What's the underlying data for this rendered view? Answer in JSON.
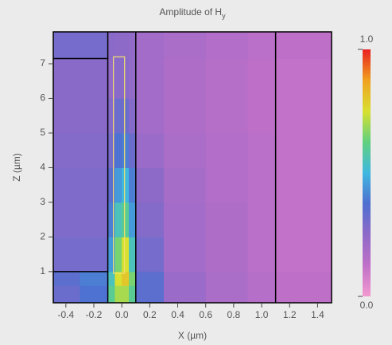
{
  "chart_data": {
    "type": "heatmap",
    "title": "Amplitude of H",
    "title_subscript": "y",
    "x_label": "X (µm)",
    "y_label": "Z (µm)",
    "xlim": [
      -0.49,
      1.5
    ],
    "ylim": [
      0.1,
      7.92
    ],
    "xticks": [
      -0.4,
      -0.2,
      {
        "value": 0,
        "label": "0.0"
      },
      0.2,
      0.4,
      0.6,
      0.8,
      {
        "value": 1,
        "label": "1.0"
      },
      1.2,
      1.4
    ],
    "yticks": [
      1,
      2,
      3,
      4,
      5,
      6,
      7
    ],
    "x_edges": [
      -0.49,
      -0.3,
      -0.1,
      -0.05,
      0.0,
      0.05,
      0.1,
      0.3,
      0.6,
      0.9,
      1.1,
      1.5
    ],
    "y_edges": [
      0.1,
      0.6,
      1.0,
      2,
      3,
      4,
      5,
      6,
      7.15,
      7.92
    ],
    "z": [
      [
        0.32,
        0.38,
        0.6,
        0.7,
        0.7,
        0.6,
        0.35,
        0.22,
        0.18,
        0.15,
        0.13
      ],
      [
        0.35,
        0.4,
        0.55,
        0.75,
        0.8,
        0.65,
        0.35,
        0.22,
        0.18,
        0.15,
        0.13
      ],
      [
        0.3,
        0.3,
        0.45,
        0.65,
        0.75,
        0.55,
        0.3,
        0.2,
        0.17,
        0.14,
        0.12
      ],
      [
        0.28,
        0.28,
        0.4,
        0.55,
        0.6,
        0.45,
        0.27,
        0.2,
        0.17,
        0.14,
        0.12
      ],
      [
        0.28,
        0.28,
        0.35,
        0.45,
        0.5,
        0.4,
        0.25,
        0.19,
        0.16,
        0.14,
        0.12
      ],
      [
        0.27,
        0.27,
        0.3,
        0.38,
        0.4,
        0.32,
        0.22,
        0.18,
        0.16,
        0.14,
        0.12
      ],
      [
        0.26,
        0.26,
        0.27,
        0.32,
        0.32,
        0.27,
        0.2,
        0.17,
        0.15,
        0.13,
        0.12
      ],
      [
        0.26,
        0.26,
        0.24,
        0.26,
        0.26,
        0.24,
        0.2,
        0.17,
        0.15,
        0.13,
        0.12
      ],
      [
        0.3,
        0.3,
        0.26,
        0.25,
        0.25,
        0.24,
        0.2,
        0.18,
        0.16,
        0.14,
        0.13
      ]
    ],
    "colormap": [
      "#f39ad0",
      "#c070c8",
      "#8e6ac8",
      "#4f6fd0",
      "#3fb8e0",
      "#60d080",
      "#d8e030",
      "#f0a020",
      "#e82020"
    ],
    "clim": [
      0,
      1
    ],
    "cticks": [
      {
        "value": 0,
        "label": "0.0"
      },
      {
        "value": 1,
        "label": "1.0"
      }
    ],
    "structure_color": "#000000",
    "structure": [
      {
        "x": [
          -0.1,
          -0.1
        ],
        "z": [
          0.1,
          7.92
        ]
      },
      {
        "x": [
          0.1,
          0.1
        ],
        "z": [
          0.1,
          7.92
        ]
      },
      {
        "x": [
          1.1,
          1.1
        ],
        "z": [
          0.1,
          7.92
        ]
      },
      {
        "x": [
          -0.49,
          -0.1
        ],
        "z": [
          7.15,
          7.15
        ]
      },
      {
        "x": [
          -0.49,
          -0.1
        ],
        "z": [
          1.0,
          1.0
        ]
      }
    ],
    "waveguide": {
      "x": [
        -0.06,
        0.02
      ],
      "z": [
        0.95,
        7.2
      ],
      "color": "#f0e070"
    }
  }
}
